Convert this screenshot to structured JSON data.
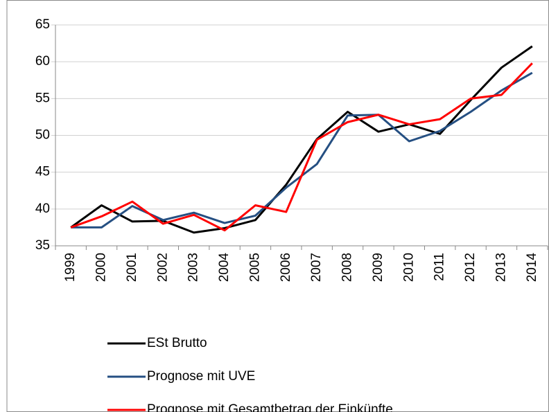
{
  "chart_data": {
    "type": "line",
    "categories": [
      "1999",
      "2000",
      "2001",
      "2002",
      "2003",
      "2004",
      "2005",
      "2006",
      "2007",
      "2008",
      "2009",
      "2010",
      "2011",
      "2012",
      "2013",
      "2014"
    ],
    "series": [
      {
        "name": "ESt Brutto",
        "color": "#000000",
        "values": [
          37.5,
          40.5,
          38.3,
          38.4,
          36.8,
          37.4,
          38.5,
          43.3,
          49.5,
          53.2,
          50.5,
          51.5,
          50.2,
          54.8,
          59.2,
          62.1
        ]
      },
      {
        "name": "Prognose mit UVE",
        "color": "#254f82",
        "values": [
          37.5,
          37.5,
          40.4,
          38.5,
          39.5,
          38.1,
          39.1,
          42.9,
          46.1,
          52.7,
          52.8,
          49.2,
          50.6,
          53.2,
          56.1,
          58.5
        ]
      },
      {
        "name": "Prognose mit Gesamtbetrag der Einkünfte",
        "color": "#ff0000",
        "values": [
          37.5,
          39.0,
          41.0,
          38.0,
          39.2,
          37.1,
          40.5,
          39.6,
          49.4,
          51.8,
          52.8,
          51.5,
          52.2,
          55.0,
          55.5,
          59.8
        ]
      }
    ],
    "ylim": [
      35,
      65
    ],
    "yticks": [
      35,
      40,
      45,
      50,
      55,
      60,
      65
    ],
    "grid": true,
    "legend": "bottom"
  }
}
